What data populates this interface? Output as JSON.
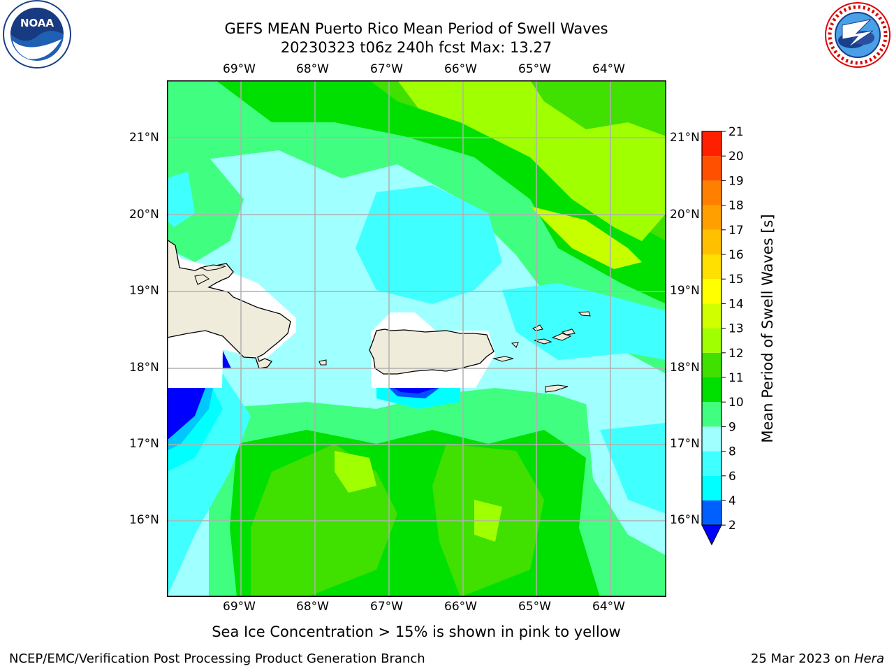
{
  "header": {
    "title": "GEFS MEAN Puerto Rico Mean Period of Swell Waves",
    "subtitle": "20230323 t06z 240h fcst   Max: 13.27"
  },
  "logos": {
    "left": {
      "text": "NOAA",
      "ring_text": "NATIONAL OCEANIC AND ATMOSPHERIC ADMINISTRATION · U.S. DEPARTMENT OF COMMERCE"
    },
    "right": {
      "ring_text": "NATIONAL WEATHER SERVICE"
    }
  },
  "map": {
    "lon_ticks": [
      "69°W",
      "68°W",
      "67°W",
      "66°W",
      "65°W",
      "64°W"
    ],
    "lat_ticks": [
      "21°N",
      "20°N",
      "19°N",
      "18°N",
      "17°N",
      "16°N"
    ]
  },
  "colorbar": {
    "label": "Mean Period of Swell Waves [s]",
    "levels": [
      2,
      4,
      6,
      8,
      9,
      10,
      11,
      12,
      13,
      14,
      15,
      16,
      17,
      18,
      19,
      20,
      21
    ],
    "colors": [
      "#0060ff",
      "#00ffff",
      "#40ffff",
      "#a0ffff",
      "#40ff80",
      "#00e000",
      "#40e000",
      "#a0ff00",
      "#d0ff00",
      "#ffff00",
      "#ffe000",
      "#ffc000",
      "#ffa000",
      "#ff8000",
      "#ff5000",
      "#ff2000"
    ],
    "under_color": "#0000ff"
  },
  "footer": {
    "note": "Sea Ice Concentration > 15% is shown in pink to yellow",
    "left": "NCEP/EMC/Verification Post Processing Product Generation Branch",
    "right_date": "25 Mar 2023 on ",
    "right_host": "Hera"
  }
}
